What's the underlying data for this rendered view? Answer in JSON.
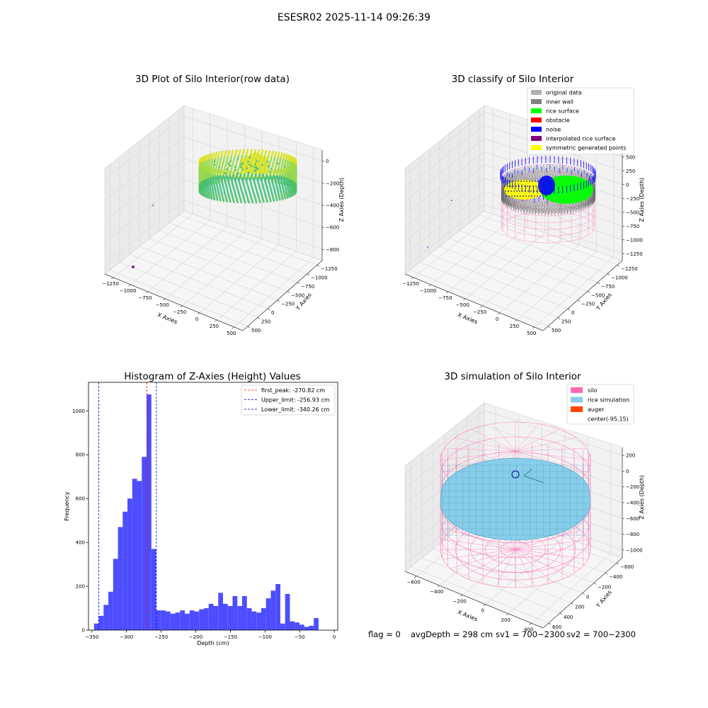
{
  "figure": {
    "suptitle": "ESESR02 2025-11-14 09:26:39",
    "status": {
      "flag": "flag = 0",
      "avg_depth": "avgDepth = 298 cm",
      "sv1": "sv1 = 700~2300",
      "sv2": "sv2 = 700~2300"
    }
  },
  "colors": {
    "hist_bar": "#4d4dff",
    "first_peak_line": "#ff0000",
    "limit_lines": "#0000cc",
    "grid": "#d9d9d9",
    "pane": "#f2f2f2",
    "silo_wire": "#ff69b4",
    "rice_sim": "#87ceeb",
    "auger": "#ff4500",
    "rice_surface": "#00ff00",
    "noise": "#0000ff",
    "symmetric": "#ffff00",
    "inner_wall": "#808080"
  },
  "chart_data": [
    {
      "type": "scatter3d",
      "title": "3D Plot of Silo Interior(row data)",
      "xlabel": "X Axies",
      "ylabel": "Y Axies",
      "zlabel": "Z Axies (Depth)",
      "xticks": [
        "−1250",
        "−1000",
        "−750",
        "−500",
        "−250",
        "0",
        "250",
        "500"
      ],
      "yticks": [
        "500",
        "250",
        "0",
        "−250",
        "−500",
        "−750",
        "−1000",
        "−1250"
      ],
      "zticks": [
        "0",
        "−200",
        "−400",
        "−600",
        "−800"
      ],
      "grid": true
    },
    {
      "type": "scatter3d",
      "title": "3D classify of Silo Interior",
      "xlabel": "X Axies",
      "ylabel": "Y Axies",
      "zlabel": "Z Axies (Depth)",
      "xticks": [
        "−1250",
        "−1000",
        "−750",
        "−500",
        "−250",
        "0",
        "250",
        "500"
      ],
      "yticks": [
        "500",
        "250",
        "0",
        "−250",
        "−500",
        "−750",
        "−1000",
        "−1250"
      ],
      "zticks": [
        "500",
        "250",
        "0",
        "−250",
        "−500",
        "−750",
        "−1000",
        "−1250"
      ],
      "grid": true,
      "legend_position": "top-right",
      "legend": [
        {
          "label": "original data",
          "color": "#b0b0b0"
        },
        {
          "label": "inner wall",
          "color": "#808080"
        },
        {
          "label": "rice surface",
          "color": "#00ff00"
        },
        {
          "label": "obstacle",
          "color": "#ff0000"
        },
        {
          "label": "noise",
          "color": "#0000ff"
        },
        {
          "label": "interpolated rice surface",
          "color": "#800080"
        },
        {
          "label": "symmetric generated points",
          "color": "#ffff00"
        }
      ]
    },
    {
      "type": "bar",
      "title": "Histogram of Z-Axies (Height) Values",
      "xlabel": "Depth (cm)",
      "ylabel": "Frequency",
      "xlim": [
        -355,
        5
      ],
      "ylim": [
        0,
        1130
      ],
      "xticks": [
        -350,
        -300,
        -250,
        -200,
        -150,
        -100,
        -50,
        0
      ],
      "yticks": [
        0,
        200,
        400,
        600,
        800,
        1000
      ],
      "bin_width": 6.9,
      "bin_start": -347,
      "values": [
        30,
        65,
        115,
        175,
        325,
        470,
        540,
        600,
        690,
        680,
        790,
        1075,
        370,
        90,
        90,
        85,
        75,
        80,
        90,
        75,
        90,
        85,
        95,
        100,
        120,
        110,
        170,
        120,
        110,
        155,
        110,
        155,
        100,
        85,
        80,
        100,
        145,
        180,
        210,
        30,
        165,
        40,
        35,
        25,
        15,
        20,
        55
      ],
      "vlines": [
        {
          "name": "first_peak",
          "x": -270.82,
          "label": "first_peak: -270.82 cm",
          "color": "#ff0000"
        },
        {
          "name": "Upper_limit",
          "x": -256.93,
          "label": "Upper_limit: -256.93 cm",
          "color": "#0000cc"
        },
        {
          "name": "Lower_limit",
          "x": -340.26,
          "label": "Lower_limit: -340.26 cm",
          "color": "#0000cc"
        }
      ],
      "legend_position": "top-right",
      "grid": false
    },
    {
      "type": "surface3d",
      "title": "3D simulation of Silo Interior",
      "xlabel": "X Axies",
      "ylabel": "Y Axies",
      "zlabel": "Z Axies (Depth)",
      "xticks": [
        "−600",
        "−400",
        "−200",
        "0",
        "200",
        "400"
      ],
      "yticks": [
        "600",
        "400",
        "200",
        "0",
        "−200",
        "−400",
        "−600"
      ],
      "zticks": [
        "200",
        "0",
        "−200",
        "−400",
        "−600",
        "−800",
        "−1000"
      ],
      "grid": true,
      "legend_position": "top-right",
      "legend": [
        {
          "label": "silo",
          "color": "#ff69b4"
        },
        {
          "label": "rice simulation",
          "color": "#87ceeb"
        },
        {
          "label": "auger",
          "color": "#ff4500"
        },
        {
          "label": "center(-95,15)",
          "color": ""
        }
      ]
    }
  ]
}
